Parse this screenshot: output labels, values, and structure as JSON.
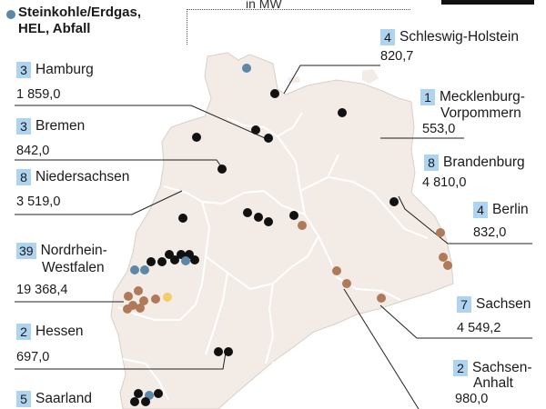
{
  "legend": {
    "items": [
      {
        "line1": "Steinkohle/Erdgas,",
        "line2": "HEL, Abfall",
        "color": "#5b87a8"
      }
    ],
    "unit": "in MW"
  },
  "colors": {
    "land": "#f3ebe6",
    "border": "#ffffff",
    "badge": "#aed4f0",
    "black_dot": "#111111",
    "blue_dot": "#5b87a8",
    "brown_dot": "#b07a5a",
    "yellow_dot": "#f4cd6a"
  },
  "states": [
    {
      "name": "Schleswig-Holstein",
      "count": "4",
      "value": "820,7"
    },
    {
      "name": "Hamburg",
      "count": "3",
      "value": "1 859,0"
    },
    {
      "name": "Mecklenburg-",
      "name2": "Vorpommern",
      "count": "1",
      "value": "553,0"
    },
    {
      "name": "Bremen",
      "count": "3",
      "value": "842,0"
    },
    {
      "name": "Brandenburg",
      "count": "8",
      "value": "4 810,0"
    },
    {
      "name": "Niedersachsen",
      "count": "8",
      "value": "3 519,0"
    },
    {
      "name": "Berlin",
      "count": "4",
      "value": "832,0"
    },
    {
      "name": "Nordrhein-",
      "name2": "Westfalen",
      "count": "39",
      "value": "19 368,4"
    },
    {
      "name": "Sachsen",
      "count": "7",
      "value": "4 549,2"
    },
    {
      "name": "Hessen",
      "count": "2",
      "value": "697,0"
    },
    {
      "name": "Sachsen-",
      "name2": "Anhalt",
      "count": "2",
      "value": "980,0"
    },
    {
      "name": "Saarland",
      "count": "5",
      "value": ""
    }
  ]
}
